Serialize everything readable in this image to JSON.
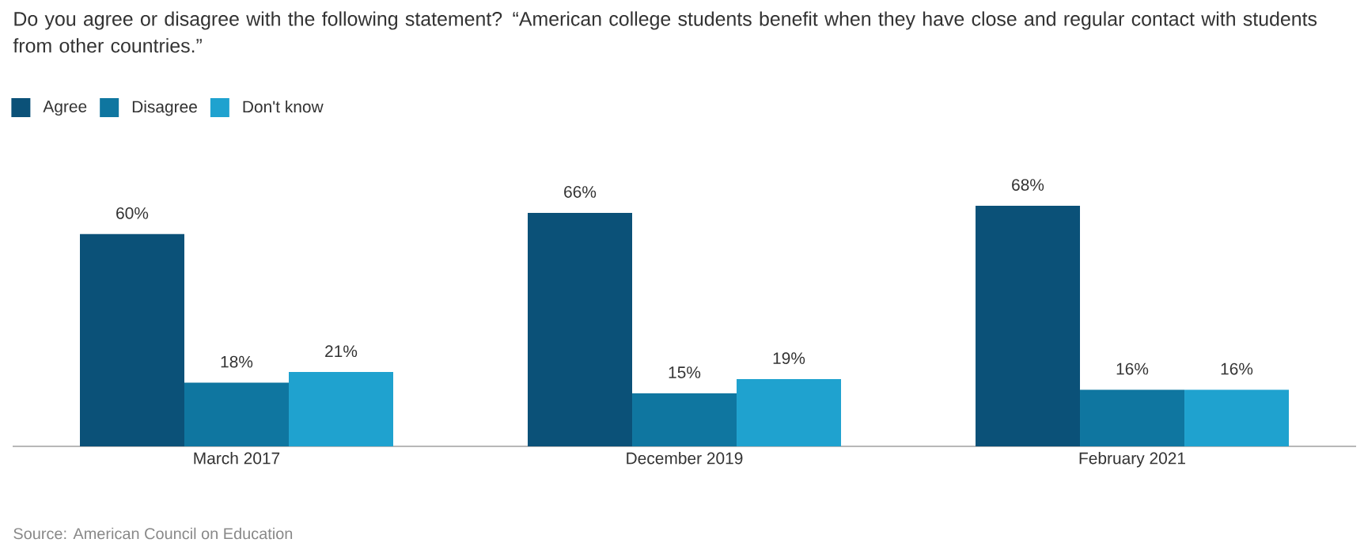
{
  "chart_data": {
    "type": "bar",
    "title": "Do you agree or disagree with the following statement? “American college students benefit when they have close and regular contact with students from other countries.”",
    "categories": [
      "March 2017",
      "December 2019",
      "February 2021"
    ],
    "series": [
      {
        "name": "Agree",
        "color": "#0b5178",
        "values": [
          60,
          66,
          68
        ],
        "value_labels": [
          "60%",
          "66%",
          "68%"
        ]
      },
      {
        "name": "Disagree",
        "color": "#0f76a0",
        "values": [
          18,
          15,
          16
        ],
        "value_labels": [
          "18%",
          "15%",
          "16%"
        ]
      },
      {
        "name": "Don't know",
        "color": "#1fa2cf",
        "values": [
          21,
          19,
          16
        ],
        "value_labels": [
          "21%",
          "19%",
          "16%"
        ]
      }
    ],
    "legend": "top left",
    "grid": false,
    "annotations": [
      "Source: American Council on Education"
    ]
  }
}
